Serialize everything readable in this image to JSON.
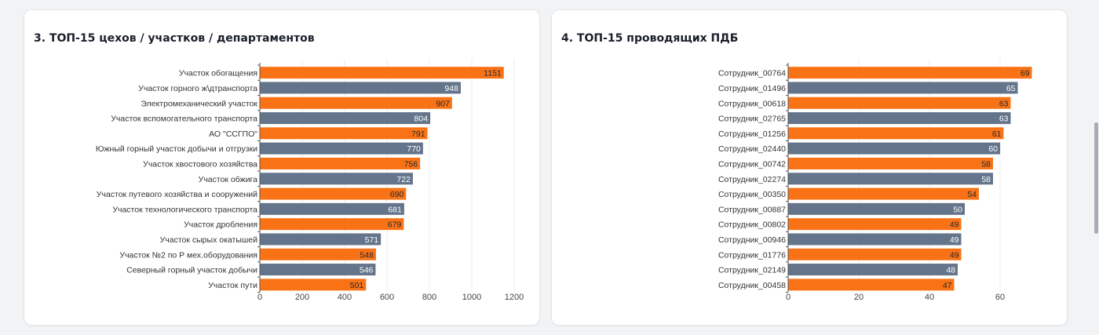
{
  "colors": {
    "orange": "#f97316",
    "slate": "#64748b",
    "axis": "#555555",
    "grid": "#ececec",
    "label_dark": "#1f2937",
    "label_light": "#ffffff"
  },
  "left_card": {
    "title": "3. ТОП-15 цехов / участков / департаментов"
  },
  "right_card": {
    "title": "4. ТОП-15 проводящих ПДБ"
  },
  "chart_data": [
    {
      "type": "bar",
      "orientation": "horizontal",
      "categories": [
        "Участок обогащения",
        "Участок горного ж\\дтранспорта",
        "Электромеханический участок",
        "Участок вспомогательного транспорта",
        "АО \"ССГПО\"",
        "Южный горный участок добычи и отгрузки",
        "Участок хвостового хозяйства",
        "Участок обжига",
        "Участок путевого хозяйства и сооружений",
        "Участок технологического транспорта",
        "Участок дробления",
        "Участок сырых окатышей",
        "Участок №2 по Р мех.оборудования",
        "Северный горный участок добычи",
        "Участок пути"
      ],
      "values": [
        1151,
        948,
        907,
        804,
        791,
        770,
        756,
        722,
        690,
        681,
        679,
        571,
        548,
        546,
        501
      ],
      "bar_colors": [
        "orange",
        "slate",
        "orange",
        "slate",
        "orange",
        "slate",
        "orange",
        "slate",
        "orange",
        "slate",
        "orange",
        "slate",
        "orange",
        "slate",
        "orange"
      ],
      "xlim": [
        0,
        1200
      ],
      "xticks": [
        0,
        200,
        400,
        600,
        800,
        1000,
        1200
      ],
      "grid": true,
      "legend": "none"
    },
    {
      "type": "bar",
      "orientation": "horizontal",
      "categories": [
        "Сотрудник_00764",
        "Сотрудник_01496",
        "Сотрудник_00618",
        "Сотрудник_02765",
        "Сотрудник_01256",
        "Сотрудник_02440",
        "Сотрудник_00742",
        "Сотрудник_02274",
        "Сотрудник_00350",
        "Сотрудник_00887",
        "Сотрудник_00802",
        "Сотрудник_00946",
        "Сотрудник_01776",
        "Сотрудник_02149",
        "Сотрудник_00458"
      ],
      "values": [
        69,
        65,
        63,
        63,
        61,
        60,
        58,
        58,
        54,
        50,
        49,
        49,
        49,
        48,
        47
      ],
      "bar_colors": [
        "orange",
        "slate",
        "orange",
        "slate",
        "orange",
        "slate",
        "orange",
        "slate",
        "orange",
        "slate",
        "orange",
        "slate",
        "orange",
        "slate",
        "orange"
      ],
      "xlim": [
        0,
        60
      ],
      "xticks": [
        0,
        20,
        40,
        60
      ],
      "grid": true,
      "legend": "none"
    }
  ]
}
